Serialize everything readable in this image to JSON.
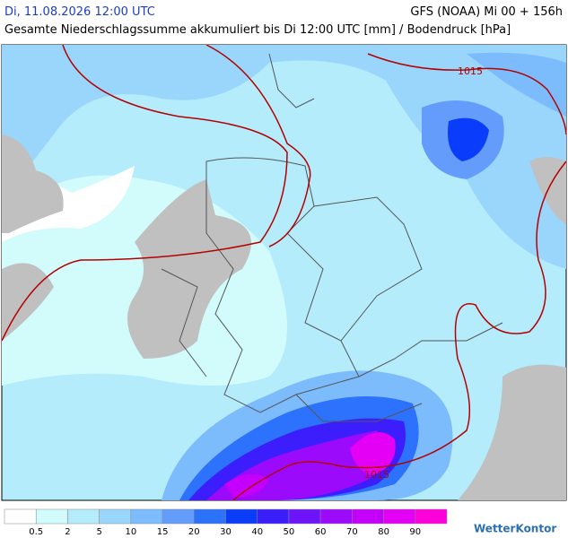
{
  "header": {
    "date": "Di, 11.08.2026 12:00 UTC",
    "model": "GFS (NOAA) Mi 00 + 156h",
    "title": "Gesamte Niederschlagssumme akkumuliert bis Di 12:00 UTC [mm] / Bodendruck [hPa]"
  },
  "map": {
    "isobar_labels": [
      "1015",
      "1015"
    ]
  },
  "legend": {
    "colors": [
      "#ffffff",
      "#d2fcfc",
      "#b4ecfc",
      "#9ad6fc",
      "#7cbcfc",
      "#649cfc",
      "#2c72fc",
      "#0a3cfc",
      "#3c1efc",
      "#6e14fc",
      "#9c0afc",
      "#c400fc",
      "#e400f4",
      "#ff00dc"
    ],
    "labels": [
      0.5,
      2,
      5,
      10,
      15,
      20,
      30,
      40,
      50,
      60,
      70,
      80,
      90
    ]
  },
  "logo": "WetterKontor"
}
